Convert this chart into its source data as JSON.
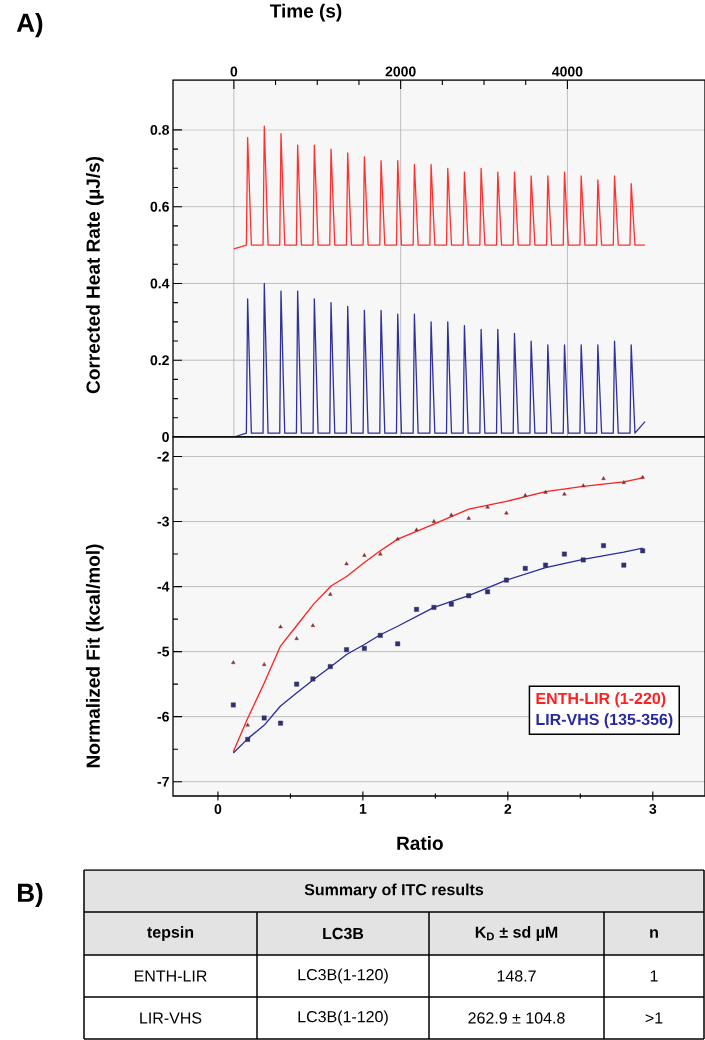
{
  "chart_data": [
    {
      "type": "line",
      "xlabel": "Time (s)",
      "ylabel": "Corrected Heat Rate (µJ/s)",
      "annotations": [
        "A)"
      ],
      "xlim": [
        -730,
        5650
      ],
      "xticks": [
        0,
        2000,
        4000
      ],
      "ylim": [
        0,
        0.93
      ],
      "yticks": [
        0,
        0.2,
        0.4,
        0.6,
        0.8
      ],
      "grid": true,
      "x": [
        0,
        150,
        165,
        210,
        350,
        365,
        410,
        550,
        565,
        610,
        750,
        765,
        810,
        950,
        965,
        1010,
        1150,
        1165,
        1210,
        1350,
        1365,
        1410,
        1550,
        1565,
        1610,
        1750,
        1765,
        1810,
        1950,
        1965,
        2010,
        2150,
        2165,
        2210,
        2350,
        2365,
        2410,
        2550,
        2565,
        2610,
        2750,
        2765,
        2810,
        2950,
        2965,
        3010,
        3150,
        3165,
        3210,
        3350,
        3365,
        3410,
        3550,
        3565,
        3610,
        3750,
        3765,
        3810,
        3950,
        3965,
        4010,
        4150,
        4165,
        4210,
        4350,
        4365,
        4410,
        4550,
        4565,
        4610,
        4750,
        4765,
        4810,
        4930
      ],
      "series": [
        {
          "color": "#ff3030",
          "values": [
            0.49,
            0.5,
            0.78,
            0.5,
            0.5,
            0.81,
            0.5,
            0.5,
            0.79,
            0.5,
            0.5,
            0.76,
            0.5,
            0.5,
            0.76,
            0.5,
            0.5,
            0.75,
            0.5,
            0.5,
            0.74,
            0.5,
            0.5,
            0.73,
            0.5,
            0.5,
            0.72,
            0.5,
            0.5,
            0.72,
            0.5,
            0.5,
            0.71,
            0.5,
            0.5,
            0.71,
            0.5,
            0.5,
            0.7,
            0.5,
            0.5,
            0.69,
            0.5,
            0.5,
            0.7,
            0.5,
            0.5,
            0.69,
            0.5,
            0.5,
            0.69,
            0.5,
            0.5,
            0.68,
            0.5,
            0.5,
            0.68,
            0.5,
            0.5,
            0.69,
            0.5,
            0.5,
            0.68,
            0.5,
            0.5,
            0.67,
            0.5,
            0.5,
            0.68,
            0.5,
            0.5,
            0.66,
            0.5,
            0.5
          ]
        },
        {
          "color": "#30309a",
          "values": [
            0,
            0.01,
            0.36,
            0.01,
            0.01,
            0.4,
            0.01,
            0.01,
            0.38,
            0.01,
            0.01,
            0.38,
            0.01,
            0.01,
            0.36,
            0.01,
            0.01,
            0.35,
            0.01,
            0.01,
            0.34,
            0.01,
            0.01,
            0.33,
            0.01,
            0.01,
            0.33,
            0.01,
            0.01,
            0.32,
            0.01,
            0.01,
            0.32,
            0.01,
            0.01,
            0.3,
            0.01,
            0.01,
            0.3,
            0.01,
            0.01,
            0.29,
            0.01,
            0.01,
            0.28,
            0.01,
            0.01,
            0.28,
            0.01,
            0.01,
            0.27,
            0.01,
            0.01,
            0.25,
            0.01,
            0.01,
            0.24,
            0.01,
            0.01,
            0.24,
            0.01,
            0.01,
            0.24,
            0.01,
            0.01,
            0.24,
            0.01,
            0.01,
            0.25,
            0.01,
            0.01,
            0.24,
            0.01,
            0.04
          ]
        }
      ]
    },
    {
      "type": "scatter",
      "xlabel": "Ratio",
      "ylabel": "Normalized Fit (kcal/mol)",
      "xlim": [
        -0.31,
        3.36
      ],
      "xticks": [
        0,
        1,
        2,
        3
      ],
      "ylim": [
        -7.22,
        -1.7
      ],
      "yticks": [
        -2,
        -3,
        -4,
        -5,
        -6,
        -7
      ],
      "grid": "y",
      "legend": "bottom right",
      "x": [
        0.106,
        0.205,
        0.319,
        0.432,
        0.543,
        0.655,
        0.775,
        0.887,
        1.01,
        1.12,
        1.24,
        1.37,
        1.49,
        1.61,
        1.73,
        1.86,
        1.99,
        2.12,
        2.26,
        2.39,
        2.52,
        2.66,
        2.8,
        2.93
      ],
      "series": [
        {
          "name": "ENTH-LIR (1-220)",
          "type": "line",
          "color": "#ff2020",
          "x": [
            0.106,
            0.2,
            0.32,
            0.43,
            0.54,
            0.66,
            0.78,
            0.89,
            1.01,
            1.12,
            1.24,
            1.49,
            1.73,
            1.99,
            2.26,
            2.52,
            2.8,
            2.93
          ],
          "values": [
            -6.54,
            -6.05,
            -5.48,
            -4.92,
            -4.61,
            -4.27,
            -3.99,
            -3.84,
            -3.63,
            -3.45,
            -3.27,
            -3.04,
            -2.81,
            -2.69,
            -2.54,
            -2.46,
            -2.39,
            -2.33
          ]
        },
        {
          "name": "LIR-VHS (135-356)",
          "type": "line",
          "color": "#2a2aa0",
          "x": [
            0.106,
            0.21,
            0.32,
            0.43,
            0.54,
            0.66,
            0.78,
            0.89,
            1.01,
            1.12,
            1.24,
            1.49,
            1.73,
            1.99,
            2.26,
            2.52,
            2.8,
            2.93
          ],
          "values": [
            -6.56,
            -6.33,
            -6.13,
            -5.84,
            -5.64,
            -5.43,
            -5.23,
            -5.04,
            -4.89,
            -4.74,
            -4.61,
            -4.32,
            -4.14,
            -3.9,
            -3.71,
            -3.58,
            -3.47,
            -3.41
          ]
        },
        {
          "color": "#8a3030",
          "marker": "triangle",
          "values": [
            -5.17,
            -6.13,
            -5.2,
            -4.62,
            -4.8,
            -4.6,
            -4.12,
            -3.65,
            -3.52,
            -3.5,
            -3.27,
            -3.13,
            -3.0,
            -2.9,
            -2.95,
            -2.78,
            -2.87,
            -2.6,
            -2.55,
            -2.58,
            -2.45,
            -2.34,
            -2.4,
            -2.32
          ]
        },
        {
          "color": "#303070",
          "marker": "square",
          "values": [
            -5.82,
            -6.35,
            -6.02,
            -6.1,
            -5.5,
            -5.42,
            -5.23,
            -4.97,
            -4.95,
            -4.75,
            -4.88,
            -4.35,
            -4.32,
            -4.27,
            -4.14,
            -4.08,
            -3.9,
            -3.72,
            -3.67,
            -3.5,
            -3.59,
            -3.37,
            -3.67,
            -3.45
          ]
        }
      ]
    },
    {
      "type": "other",
      "title": "Summary of ITC results",
      "annotations": [
        "B)",
        "tepsin",
        "LC3B",
        "K$_{D}$ ± sd µM",
        "n",
        "ENTH-LIR",
        "LC3B(1-120)",
        "148.7",
        "1",
        "LIR-VHS",
        "LC3B(1-120)",
        "262.9 ± 104.8",
        ">1"
      ]
    }
  ]
}
